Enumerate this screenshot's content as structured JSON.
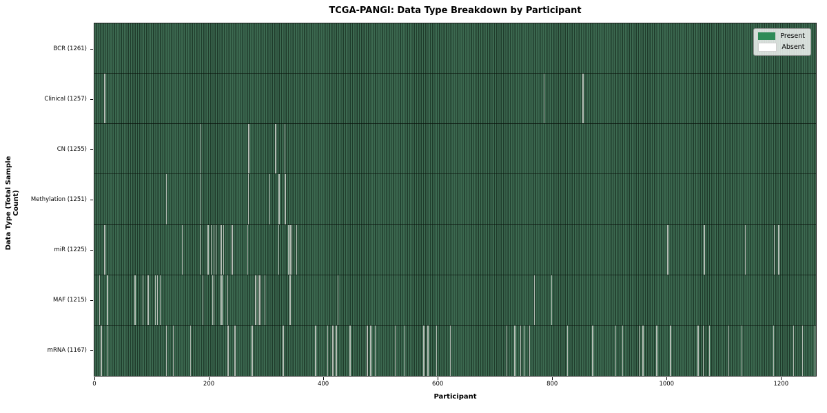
{
  "colors": {
    "present_fill": "#2e8b57",
    "absent_fill": "#ffffff",
    "texture_light": "#3c6950",
    "texture_dark": "#1f3b2b",
    "absent_stripe": "#b5bdb5",
    "axis": "#000000"
  },
  "chart_data": {
    "type": "heatmap",
    "title": "TCGA-PANGI: Data Type Breakdown by Participant",
    "xlabel": "Participant",
    "ylabel": "Data Type (Total Sample Count)",
    "x_ticks": [
      0,
      200,
      400,
      600,
      800,
      1000,
      1200
    ],
    "x_range": [
      0,
      1261
    ],
    "total_participants": 1261,
    "grid": false,
    "legend_position": "upper right",
    "legend": [
      {
        "label": "Present",
        "color": "#2e8b57"
      },
      {
        "label": "Absent",
        "color": "#ffffff"
      }
    ],
    "rows": [
      {
        "label": "BCR (1261)",
        "name": "BCR",
        "present_count": 1261,
        "absent_positions": []
      },
      {
        "label": "Clinical (1257)",
        "name": "Clinical",
        "present_count": 1257,
        "absent_positions": [
          17,
          785,
          853
        ]
      },
      {
        "label": "CN (1255)",
        "name": "CN",
        "present_count": 1255,
        "absent_positions": [
          185,
          269,
          316,
          332
        ]
      },
      {
        "label": "Methylation (1251)",
        "name": "Methylation",
        "present_count": 1251,
        "absent_positions": [
          125,
          185,
          268,
          306,
          322,
          333
        ]
      },
      {
        "label": "miR (1225)",
        "name": "miR",
        "present_count": 1225,
        "absent_positions": [
          17,
          153,
          184,
          198,
          203,
          208,
          212,
          221,
          225,
          240,
          267,
          321,
          338,
          341,
          344,
          353,
          1001,
          1065,
          1137,
          1187,
          1195
        ]
      },
      {
        "label": "MAF (1215)",
        "name": "MAF",
        "present_count": 1215,
        "absent_positions": [
          8,
          22,
          70,
          84,
          93,
          106,
          109,
          114,
          189,
          206,
          208,
          219,
          222,
          232,
          281,
          285,
          288,
          297,
          341,
          425,
          768,
          798
        ]
      },
      {
        "label": "mRNA (1167)",
        "name": "mRNA",
        "present_count": 1167,
        "absent_positions": [
          11,
          23,
          125,
          137,
          167,
          233,
          245,
          275,
          329,
          386,
          407,
          416,
          422,
          446,
          476,
          482,
          490,
          525,
          542,
          575,
          582,
          597,
          621,
          720,
          734,
          744,
          750,
          760,
          826,
          870,
          910,
          922,
          951,
          958,
          982,
          1006,
          1054,
          1063,
          1074,
          1108,
          1131,
          1186,
          1221,
          1237,
          1258
        ]
      }
    ]
  }
}
